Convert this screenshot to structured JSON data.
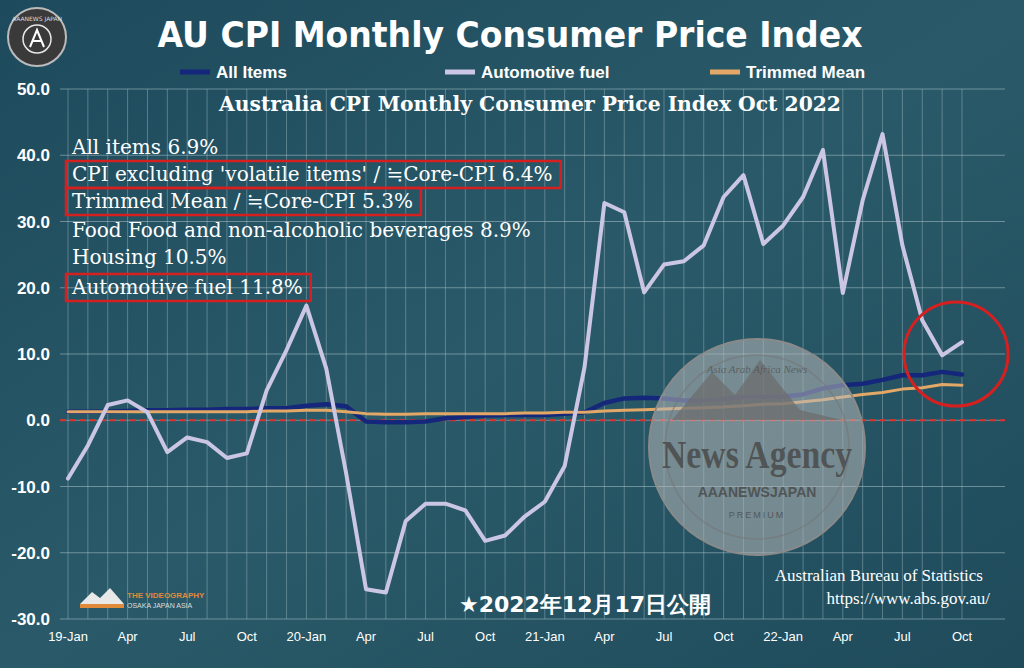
{
  "chart_data": {
    "type": "line",
    "title": "AU CPI Monthly Consumer Price Index",
    "subtitle": "Australia CPI Monthly Consumer Price Index Oct 2022",
    "annotations": [
      "All items 6.9%",
      "CPI excluding 'volatile items' / ≒Core-CPI 6.4%",
      "Trimmed Mean / ≒Core-CPI 5.3%",
      "Food Food and non-alcoholic beverages 8.9%",
      "Housing 10.5%",
      "Automotive fuel 11.8%"
    ],
    "date_note": "★2022年12月17日公開",
    "source": [
      "Australian Bureau of Statistics",
      "https://www.abs.gov.au/"
    ],
    "watermark": [
      "AAANEWS JAPAN",
      "Asia Arab Africa News",
      "News Agency",
      "AAANEWSJAPAN",
      "PREMIUM",
      "THE VIDEOGRAPHY",
      "OSAKA JAPAN ASIA"
    ],
    "categories": [
      "19-Jan",
      null,
      null,
      "Apr",
      null,
      null,
      "Jul",
      null,
      null,
      "Oct",
      null,
      null,
      "20-Jan",
      null,
      null,
      "Apr",
      null,
      null,
      "Jul",
      null,
      null,
      "Oct",
      null,
      null,
      "21-Jan",
      null,
      null,
      "Apr",
      null,
      null,
      "Jul",
      null,
      null,
      "Oct",
      null,
      null,
      "22-Jan",
      null,
      null,
      "Apr",
      null,
      null,
      "Jul",
      null,
      null,
      "Oct"
    ],
    "series": [
      {
        "name": "All Items",
        "color": "#15277a",
        "values": [
          1.3,
          1.3,
          1.3,
          1.4,
          1.5,
          1.5,
          1.6,
          1.6,
          1.7,
          1.7,
          1.8,
          1.8,
          2.2,
          2.4,
          2.1,
          -0.2,
          -0.3,
          -0.3,
          -0.2,
          0.3,
          0.5,
          0.7,
          0.8,
          0.8,
          0.8,
          1.0,
          1.2,
          2.6,
          3.3,
          3.4,
          3.3,
          3.0,
          3.0,
          3.2,
          3.5,
          3.5,
          3.6,
          3.9,
          4.8,
          5.3,
          5.5,
          6.1,
          6.8,
          6.8,
          7.3,
          6.9
        ]
      },
      {
        "name": "Automotive fuel",
        "color": "#cbc6e4",
        "values": [
          -8.8,
          -3.8,
          2.3,
          3.0,
          1.2,
          -4.8,
          -2.6,
          -3.3,
          -5.7,
          -5.0,
          4.5,
          10.6,
          17.3,
          7.8,
          -8.0,
          -25.5,
          -26.0,
          -15.2,
          -12.6,
          -12.6,
          -13.6,
          -18.2,
          -17.4,
          -14.5,
          -12.3,
          -6.9,
          8.0,
          32.8,
          31.4,
          19.3,
          23.5,
          24.0,
          26.4,
          33.7,
          37.0,
          26.6,
          29.4,
          33.7,
          40.8,
          19.2,
          33.2,
          43.2,
          26.4,
          15.1,
          9.8,
          11.8
        ]
      },
      {
        "name": "Trimmed Mean",
        "color": "#e3a867",
        "values": [
          1.3,
          1.3,
          1.3,
          1.3,
          1.3,
          1.3,
          1.3,
          1.3,
          1.3,
          1.3,
          1.4,
          1.4,
          1.5,
          1.5,
          1.3,
          1.0,
          0.9,
          0.9,
          1.0,
          1.0,
          1.0,
          1.0,
          1.0,
          1.1,
          1.1,
          1.2,
          1.2,
          1.4,
          1.5,
          1.6,
          1.7,
          1.8,
          1.9,
          2.0,
          2.2,
          2.4,
          2.5,
          2.8,
          3.1,
          3.5,
          3.9,
          4.2,
          4.7,
          4.9,
          5.4,
          5.3
        ]
      }
    ],
    "ylim": [
      -30,
      50
    ],
    "yticks": [
      {
        "value": -30,
        "label": "-30.0"
      },
      {
        "value": -20,
        "label": "-20.0"
      },
      {
        "value": -10,
        "label": "-10.0"
      },
      {
        "value": 0,
        "label": "0.0"
      },
      {
        "value": 10,
        "label": "10.0"
      },
      {
        "value": 20,
        "label": "20.0"
      },
      {
        "value": 30,
        "label": "30.0"
      },
      {
        "value": 40,
        "label": "40.0"
      },
      {
        "value": 50,
        "label": "50.0"
      }
    ],
    "grid": true,
    "legend": "top"
  }
}
